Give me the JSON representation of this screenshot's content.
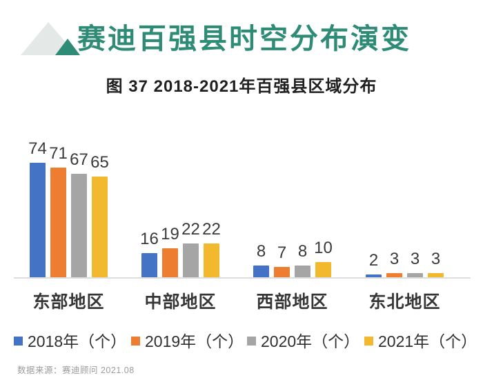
{
  "header": {
    "title": "赛迪百强县时空分布演变",
    "subtitle": "图 37  2018-2021年百强县区域分布"
  },
  "chart_data": {
    "type": "bar",
    "title": "图 37 2018-2021年百强县区域分布",
    "categories": [
      "东部地区",
      "中部地区",
      "西部地区",
      "东北地区"
    ],
    "series": [
      {
        "name": "2018年（个）",
        "color": "#4472C4",
        "values": [
          74,
          16,
          8,
          2
        ]
      },
      {
        "name": "2019年（个）",
        "color": "#ED7D31",
        "values": [
          71,
          19,
          7,
          3
        ]
      },
      {
        "name": "2020年（个）",
        "color": "#A5A5A5",
        "values": [
          67,
          22,
          8,
          3
        ]
      },
      {
        "name": "2021年（个）",
        "color": "#F2B92E",
        "values": [
          65,
          22,
          10,
          3
        ]
      }
    ],
    "ylim": [
      0,
      80
    ],
    "grid": false,
    "data_labels": true,
    "legend_position": "bottom"
  },
  "footer": {
    "source": "数据来源：赛迪顾问 2021.08"
  },
  "colors": {
    "title_teal": "#2E8B76",
    "logo_gray": "#E4E8E6",
    "logo_teal": "#2E8B76",
    "axis_line": "#DDDDDD"
  }
}
